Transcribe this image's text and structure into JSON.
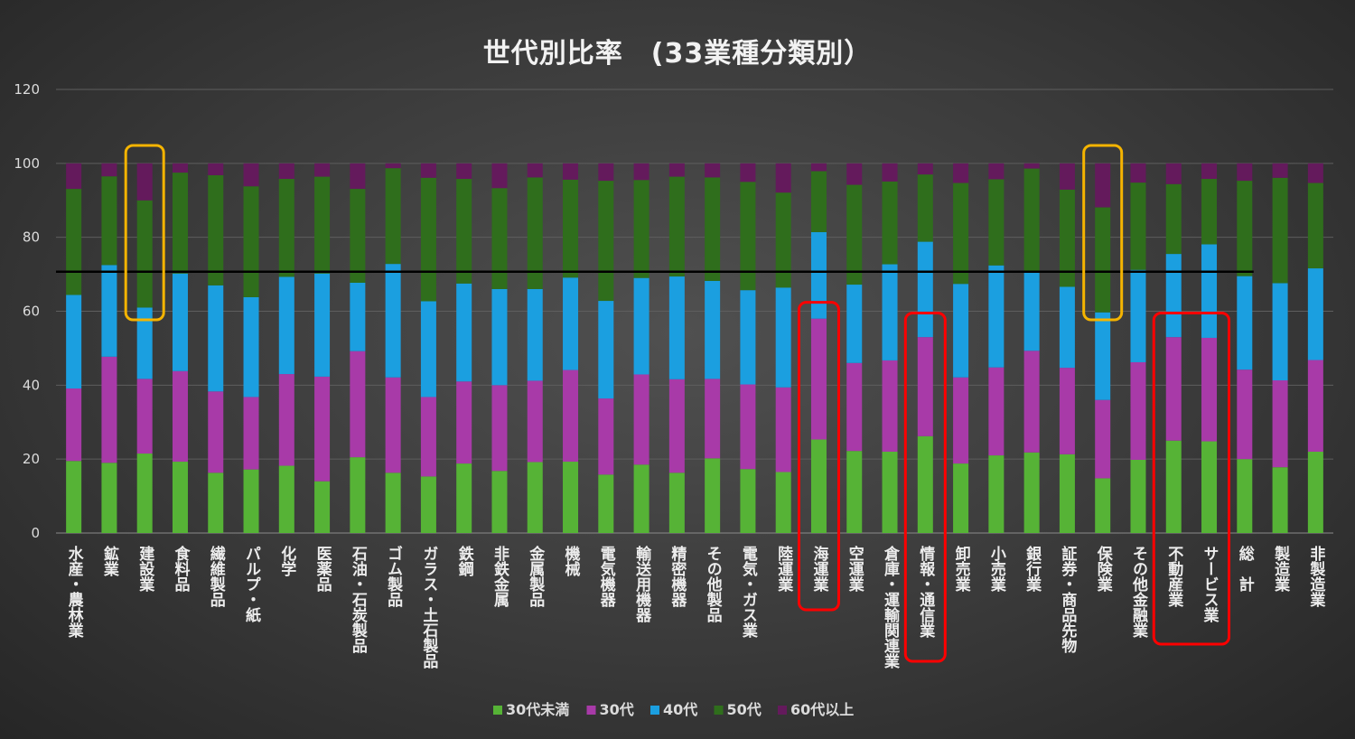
{
  "chart_data": {
    "type": "bar",
    "stacked": true,
    "title": "世代別比率　(33業種分類別）",
    "xlabel": "",
    "ylabel": "",
    "ylim": [
      0,
      120
    ],
    "yticks": [
      0,
      20,
      40,
      60,
      80,
      100,
      120
    ],
    "grid": true,
    "legend_position": "bottom",
    "reference_line": {
      "y": 70.7,
      "color": "#000000"
    },
    "categories": [
      "水産・農林業",
      "鉱業",
      "建設業",
      "食料品",
      "繊維製品",
      "パルプ・紙",
      "化学",
      "医薬品",
      "石油・石炭製品",
      "ゴム製品",
      "ガラス・土石製品",
      "鉄鋼",
      "非鉄金属",
      "金属製品",
      "機械",
      "電気機器",
      "輸送用機器",
      "精密機器",
      "その他製品",
      "電気・ガス業",
      "陸運業",
      "海運業",
      "空運業",
      "倉庫・運輸関連業",
      "情報・通信業",
      "卸売業",
      "小売業",
      "銀行業",
      "証券・商品先物",
      "保険業",
      "その他金融業",
      "不動産業",
      "サービス業",
      "総　計",
      "製造業",
      "非製造業"
    ],
    "series": [
      {
        "name": "30代未満",
        "color": "#56b336",
        "values": [
          19.5,
          19.0,
          21.5,
          19.3,
          16.3,
          17.2,
          18.2,
          14.0,
          20.5,
          16.3,
          15.3,
          18.8,
          16.8,
          19.2,
          19.3,
          15.8,
          18.5,
          16.3,
          20.2,
          17.3,
          16.5,
          25.3,
          22.2,
          22.0,
          26.2,
          18.8,
          21.0,
          21.8,
          21.3,
          14.8,
          19.8,
          25.0,
          24.8,
          20.0,
          17.8,
          22.0
        ]
      },
      {
        "name": "30代",
        "color": "#a83aa8",
        "values": [
          19.6,
          28.7,
          20.2,
          24.5,
          22.0,
          19.6,
          24.8,
          28.3,
          28.7,
          25.8,
          21.5,
          22.2,
          23.2,
          22.0,
          24.8,
          20.6,
          24.4,
          25.3,
          21.5,
          22.9,
          22.9,
          32.7,
          23.8,
          24.7,
          26.8,
          23.3,
          23.8,
          27.5,
          23.4,
          21.2,
          26.4,
          28.0,
          28.0,
          24.2,
          23.5,
          24.8
        ]
      },
      {
        "name": "40代",
        "color": "#1b9fe0",
        "values": [
          25.3,
          24.8,
          19.3,
          26.4,
          28.7,
          27.0,
          26.3,
          27.9,
          18.5,
          30.7,
          25.9,
          26.5,
          26.0,
          24.8,
          25.0,
          26.4,
          26.1,
          27.8,
          26.5,
          25.5,
          27.0,
          23.4,
          21.2,
          26.0,
          25.8,
          25.3,
          27.6,
          21.6,
          21.9,
          23.7,
          25.0,
          22.5,
          25.3,
          25.3,
          26.3,
          24.8
        ]
      },
      {
        "name": "50代",
        "color": "#2f6e1c",
        "values": [
          28.7,
          24.0,
          29.0,
          27.3,
          29.8,
          30.0,
          26.5,
          26.2,
          25.4,
          25.9,
          33.4,
          28.3,
          27.3,
          30.2,
          26.5,
          32.5,
          26.5,
          27.0,
          28.0,
          29.3,
          25.7,
          16.5,
          27.0,
          22.4,
          18.2,
          27.3,
          23.3,
          27.7,
          26.3,
          28.4,
          23.6,
          18.9,
          17.7,
          25.8,
          28.5,
          23.1
        ]
      },
      {
        "name": "60代以上",
        "color": "#641a5c",
        "values": [
          6.9,
          3.5,
          10.0,
          2.5,
          3.2,
          6.2,
          4.2,
          3.6,
          6.9,
          1.3,
          3.9,
          4.2,
          6.7,
          3.8,
          4.4,
          4.7,
          4.5,
          3.6,
          3.8,
          5.0,
          7.9,
          2.1,
          5.8,
          4.9,
          3.0,
          5.3,
          4.3,
          1.4,
          7.1,
          11.9,
          5.2,
          5.6,
          4.2,
          4.7,
          3.9,
          5.3
        ]
      }
    ],
    "highlights": [
      {
        "categories": [
          "建設業"
        ],
        "color": "#f5b400"
      },
      {
        "categories": [
          "保険業"
        ],
        "color": "#f5b400"
      },
      {
        "categories": [
          "海運業"
        ],
        "color": "#ff0000"
      },
      {
        "categories": [
          "情報・通信業"
        ],
        "color": "#ff0000"
      },
      {
        "categories": [
          "不動産業",
          "サービス業"
        ],
        "color": "#ff0000"
      }
    ]
  }
}
